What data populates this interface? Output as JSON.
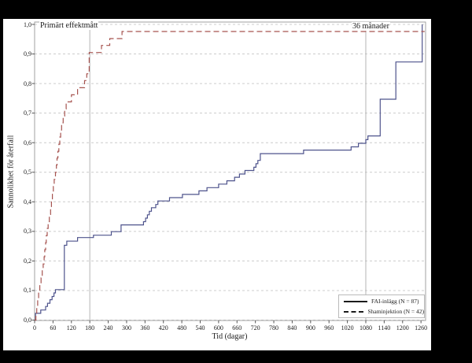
{
  "figure": {
    "annotations": {
      "primary_endpoint": "Primärt effektmått",
      "months36": "36 månader"
    },
    "colors": {
      "fai_line": "#4e538c",
      "sham_line": "#a6534f",
      "gridline": "#cccccc",
      "reference_line": "#b5b5b5",
      "plot_border": "#a0a0a0",
      "panel_background": "#ffffff",
      "outer_background": "#000000"
    },
    "axes": {
      "x": {
        "title": "Tid (dagar)",
        "tick_days": [
          0,
          60,
          120,
          180,
          240,
          300,
          360,
          420,
          480,
          540,
          600,
          660,
          720,
          780,
          840,
          900,
          960,
          1020,
          1080,
          1140,
          1200,
          1260
        ]
      },
      "y": {
        "title": "Sannolikhet för återfall",
        "tick_labels": [
          "0,0",
          "0,1",
          "0,2",
          "0,3",
          "0,4",
          "0,5",
          "0,6",
          "0,7",
          "0,8",
          "0,9",
          "1,0"
        ],
        "tick_values": [
          0,
          0.1,
          0.2,
          0.3,
          0.4,
          0.5,
          0.6,
          0.7,
          0.8,
          0.9,
          1.0
        ]
      }
    }
  },
  "chart_data": {
    "type": "line",
    "subtype": "kaplan-meier-step",
    "title": "Primärt effektmått",
    "xlabel": "Tid (dagar)",
    "ylabel": "Sannolikhet för återfall",
    "xlim": [
      0,
      1275
    ],
    "ylim": [
      0,
      1.0
    ],
    "grid": "horizontal-dashed",
    "legend_position": "bottom-right",
    "reference_lines_days": [
      180,
      1080
    ],
    "reference_line_labels": [
      "Primärt effektmått",
      "36 månader"
    ],
    "series": [
      {
        "name": "FAI-inlägg (N = 87)",
        "color": "#4e538c",
        "style": "solid",
        "points": [
          [
            0,
            0
          ],
          [
            3,
            0.023
          ],
          [
            20,
            0.034
          ],
          [
            36,
            0.046
          ],
          [
            42,
            0.057
          ],
          [
            50,
            0.069
          ],
          [
            57,
            0.08
          ],
          [
            63,
            0.092
          ],
          [
            68,
            0.103
          ],
          [
            97,
            0.253
          ],
          [
            105,
            0.267
          ],
          [
            140,
            0.279
          ],
          [
            192,
            0.287
          ],
          [
            250,
            0.299
          ],
          [
            282,
            0.322
          ],
          [
            355,
            0.333
          ],
          [
            362,
            0.345
          ],
          [
            368,
            0.356
          ],
          [
            374,
            0.368
          ],
          [
            381,
            0.38
          ],
          [
            395,
            0.391
          ],
          [
            402,
            0.403
          ],
          [
            440,
            0.414
          ],
          [
            482,
            0.425
          ],
          [
            536,
            0.437
          ],
          [
            562,
            0.448
          ],
          [
            600,
            0.46
          ],
          [
            627,
            0.471
          ],
          [
            652,
            0.483
          ],
          [
            668,
            0.494
          ],
          [
            686,
            0.506
          ],
          [
            715,
            0.517
          ],
          [
            722,
            0.529
          ],
          [
            728,
            0.54
          ],
          [
            736,
            0.563
          ],
          [
            877,
            0.575
          ],
          [
            1032,
            0.586
          ],
          [
            1056,
            0.598
          ],
          [
            1080,
            0.61
          ],
          [
            1087,
            0.623
          ],
          [
            1127,
            0.747
          ],
          [
            1178,
            0.873
          ],
          [
            1264,
            1.0
          ]
        ]
      },
      {
        "name": "Shaminjektion (N = 42)",
        "color": "#a6534f",
        "style": "dashed",
        "points": [
          [
            0,
            0
          ],
          [
            4,
            0.024
          ],
          [
            7,
            0.048
          ],
          [
            10,
            0.071
          ],
          [
            13,
            0.095
          ],
          [
            17,
            0.119
          ],
          [
            21,
            0.143
          ],
          [
            25,
            0.167
          ],
          [
            28,
            0.19
          ],
          [
            31,
            0.214
          ],
          [
            33,
            0.238
          ],
          [
            36,
            0.262
          ],
          [
            38,
            0.286
          ],
          [
            41,
            0.31
          ],
          [
            44,
            0.333
          ],
          [
            48,
            0.357
          ],
          [
            52,
            0.381
          ],
          [
            55,
            0.405
          ],
          [
            58,
            0.429
          ],
          [
            61,
            0.452
          ],
          [
            64,
            0.476
          ],
          [
            68,
            0.5
          ],
          [
            71,
            0.524
          ],
          [
            73,
            0.548
          ],
          [
            76,
            0.571
          ],
          [
            79,
            0.595
          ],
          [
            82,
            0.619
          ],
          [
            85,
            0.643
          ],
          [
            88,
            0.667
          ],
          [
            93,
            0.69
          ],
          [
            98,
            0.714
          ],
          [
            103,
            0.738
          ],
          [
            120,
            0.762
          ],
          [
            140,
            0.786
          ],
          [
            163,
            0.81
          ],
          [
            170,
            0.833
          ],
          [
            178,
            0.905
          ],
          [
            218,
            0.929
          ],
          [
            245,
            0.952
          ],
          [
            285,
            0.976
          ],
          [
            1272,
            0.976
          ]
        ]
      }
    ]
  }
}
